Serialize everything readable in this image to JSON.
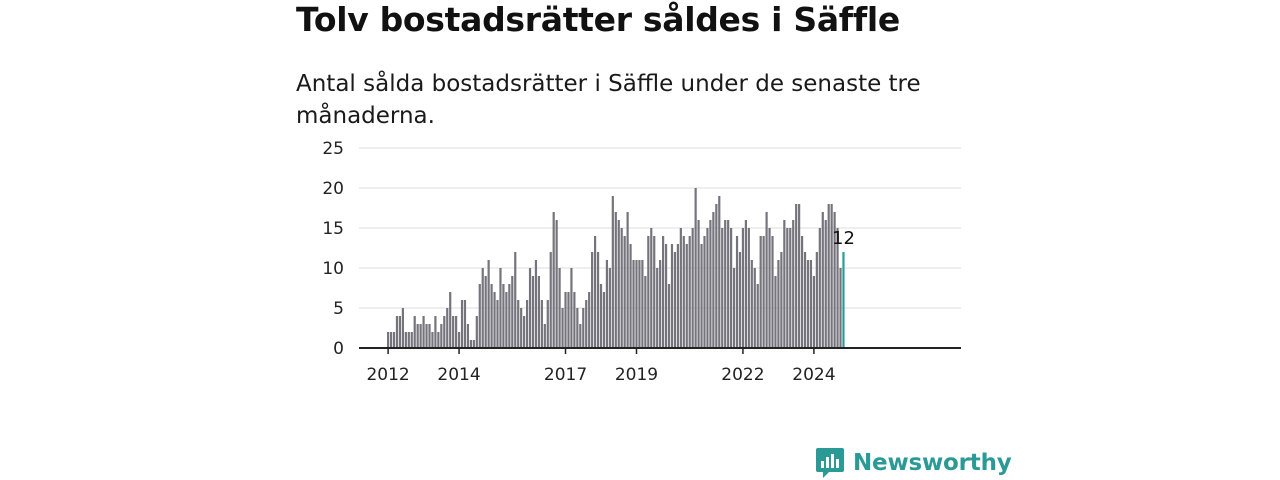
{
  "title": "Tolv bostadsrätter såldes i Säffle",
  "subtitle": "Antal sålda bostadsrätter i Säffle under de senaste tre månaderna.",
  "brand": {
    "name": "Newsworthy",
    "icon": "newsworthy-logo-icon"
  },
  "colors": {
    "bar": "#75747c",
    "highlight": "#2a9d99",
    "axis": "#222222",
    "grid": "#dddddd"
  },
  "chart_data": {
    "type": "bar",
    "ylim": [
      0,
      25
    ],
    "y_ticks": [
      0,
      5,
      10,
      15,
      20,
      25
    ],
    "x_ticks": [
      {
        "label": "2012",
        "index": 0
      },
      {
        "label": "2014",
        "index": 24
      },
      {
        "label": "2017",
        "index": 60
      },
      {
        "label": "2019",
        "index": 84
      },
      {
        "label": "2022",
        "index": 120
      },
      {
        "label": "2024",
        "index": 144
      }
    ],
    "grid": true,
    "highlight_label": "12",
    "values": [
      2,
      2,
      2,
      4,
      4,
      5,
      2,
      2,
      2,
      4,
      3,
      3,
      4,
      3,
      3,
      2,
      4,
      2,
      3,
      4,
      5,
      7,
      4,
      4,
      2,
      6,
      6,
      3,
      1,
      1,
      4,
      8,
      10,
      9,
      11,
      8,
      7,
      6,
      10,
      8,
      7,
      8,
      9,
      12,
      6,
      5,
      4,
      6,
      10,
      9,
      11,
      9,
      6,
      3,
      6,
      12,
      17,
      16,
      10,
      5,
      7,
      7,
      10,
      7,
      5,
      3,
      5,
      6,
      7,
      12,
      14,
      12,
      8,
      7,
      11,
      10,
      19,
      17,
      16,
      15,
      14,
      17,
      13,
      11,
      11,
      11,
      11,
      9,
      14,
      15,
      14,
      10,
      11,
      14,
      13,
      8,
      13,
      12,
      13,
      15,
      14,
      13,
      14,
      15,
      20,
      16,
      13,
      14,
      15,
      16,
      17,
      18,
      19,
      15,
      16,
      16,
      15,
      10,
      14,
      12,
      15,
      16,
      15,
      11,
      10,
      8,
      14,
      14,
      17,
      15,
      14,
      9,
      11,
      12,
      16,
      15,
      15,
      16,
      18,
      18,
      14,
      12,
      11,
      11,
      9,
      12,
      15,
      17,
      16,
      18,
      18,
      17,
      15,
      10,
      12
    ]
  }
}
